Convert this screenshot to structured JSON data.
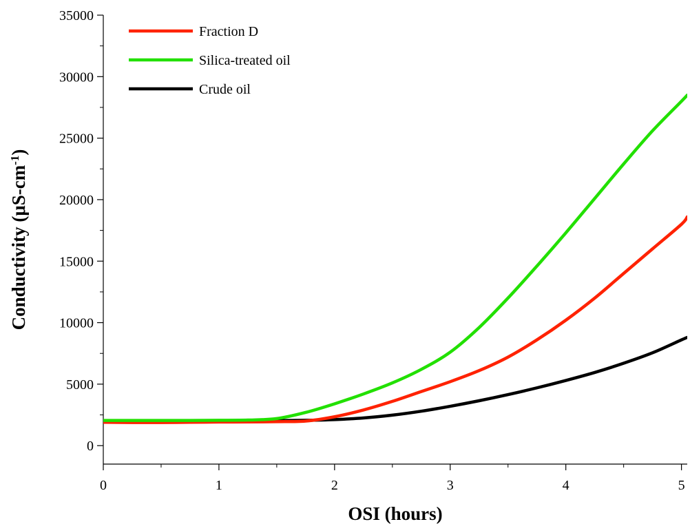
{
  "chart_data": {
    "type": "line",
    "title": "",
    "xlabel": "OSI (hours)",
    "ylabel_main": "Conductivity (μS-cm",
    "ylabel_sup": "-1",
    "ylabel_close": ")",
    "xlim": [
      0,
      5.05
    ],
    "ylim": [
      -1500,
      35000
    ],
    "x_ticks": [
      0,
      1,
      2,
      3,
      4,
      5
    ],
    "x_tick_labels": [
      "0",
      "1",
      "2",
      "3",
      "4",
      "5"
    ],
    "y_ticks": [
      0,
      5000,
      10000,
      15000,
      20000,
      25000,
      30000,
      35000
    ],
    "y_tick_labels": [
      "0",
      "5000",
      "10000",
      "15000",
      "20000",
      "25000",
      "30000",
      "35000"
    ],
    "grid": false,
    "legend_position": "top-left",
    "series": [
      {
        "name": "Fraction D",
        "color": "#ff2200",
        "x": [
          0,
          0.25,
          0.5,
          0.75,
          1.0,
          1.25,
          1.5,
          1.75,
          2.0,
          2.25,
          2.5,
          2.75,
          3.0,
          3.25,
          3.5,
          3.75,
          4.0,
          4.25,
          4.5,
          4.75,
          5.0,
          5.05
        ],
        "y": [
          1900,
          1880,
          1880,
          1900,
          1920,
          1930,
          1950,
          2000,
          2350,
          2900,
          3600,
          4400,
          5200,
          6100,
          7200,
          8600,
          10200,
          12000,
          14000,
          16000,
          18000,
          18600
        ]
      },
      {
        "name": "Silica-treated oil",
        "color": "#22e000",
        "x": [
          0,
          0.25,
          0.5,
          0.75,
          1.0,
          1.25,
          1.5,
          1.75,
          2.0,
          2.25,
          2.5,
          2.75,
          3.0,
          3.25,
          3.5,
          3.75,
          4.0,
          4.25,
          4.5,
          4.75,
          5.0,
          5.05
        ],
        "y": [
          2050,
          2050,
          2050,
          2050,
          2060,
          2080,
          2200,
          2700,
          3400,
          4200,
          5100,
          6200,
          7600,
          9600,
          12000,
          14600,
          17300,
          20100,
          22900,
          25600,
          28000,
          28500
        ]
      },
      {
        "name": "Crude oil",
        "color": "#000000",
        "x": [
          0,
          0.25,
          0.5,
          0.75,
          1.0,
          1.25,
          1.5,
          1.75,
          2.0,
          2.25,
          2.5,
          2.75,
          3.0,
          3.25,
          3.5,
          3.75,
          4.0,
          4.25,
          4.5,
          4.75,
          5.0,
          5.05
        ],
        "y": [
          2000,
          2000,
          2000,
          2000,
          2000,
          2020,
          2040,
          2060,
          2120,
          2250,
          2480,
          2800,
          3200,
          3650,
          4150,
          4700,
          5300,
          5950,
          6700,
          7550,
          8600,
          8800
        ]
      }
    ]
  }
}
